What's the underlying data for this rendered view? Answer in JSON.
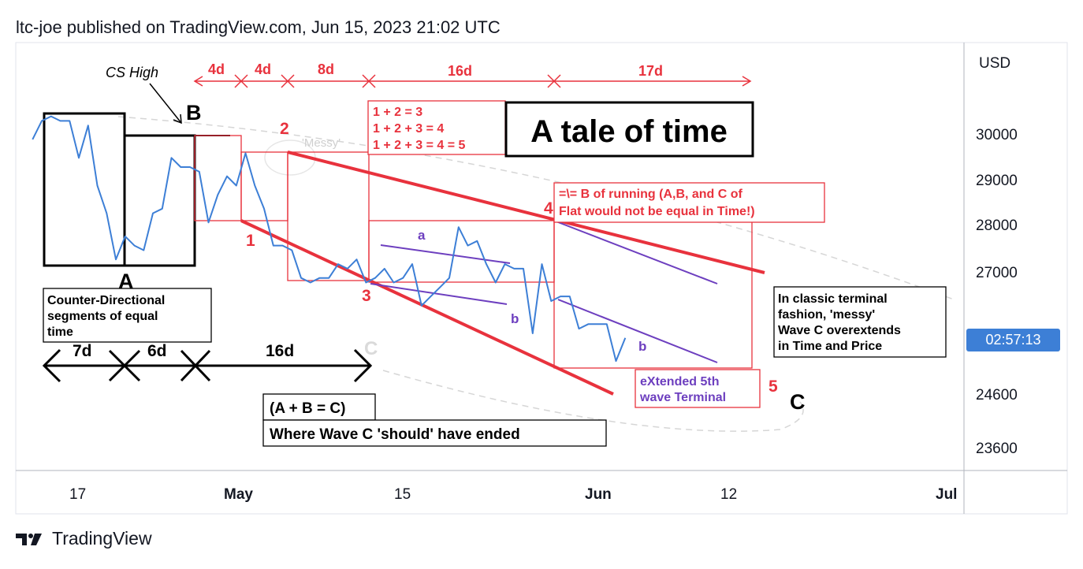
{
  "header": {
    "title": "ltc-joe published on TradingView.com, Jun 15, 2023 21:02 UTC"
  },
  "footer": {
    "brand": "TradingView"
  },
  "axis": {
    "currency": "USD",
    "price_ticks": [
      "30000",
      "29000",
      "28000",
      "27000",
      "24600",
      "23600"
    ],
    "time_ticks": [
      "17",
      "May",
      "15",
      "Jun",
      "12",
      "Jul"
    ],
    "current_time_tag": "02:57:13"
  },
  "chart_data": {
    "type": "line",
    "title": "A tale of time",
    "xlabel": "",
    "ylabel": "",
    "x_range": [
      "Apr 12, 2023",
      "Jul 1, 2023"
    ],
    "ylim": [
      23300,
      31500
    ],
    "log_scale": false,
    "grid": false,
    "series": [
      {
        "color": "#3d7fd6",
        "points": [
          [
            "Apr 12",
            29900
          ],
          [
            "Apr 13",
            30300
          ],
          [
            "Apr 14",
            30400
          ],
          [
            "Apr 15",
            30300
          ],
          [
            "Apr 16",
            30300
          ],
          [
            "Apr 17",
            29500
          ],
          [
            "Apr 18",
            30200
          ],
          [
            "Apr 19",
            28900
          ],
          [
            "Apr 20",
            28300
          ],
          [
            "Apr 21",
            27300
          ],
          [
            "Apr 22",
            27800
          ],
          [
            "Apr 23",
            27600
          ],
          [
            "Apr 24",
            27500
          ],
          [
            "Apr 25",
            28300
          ],
          [
            "Apr 26",
            28400
          ],
          [
            "Apr 27",
            29500
          ],
          [
            "Apr 28",
            29300
          ],
          [
            "Apr 29",
            29300
          ],
          [
            "Apr 30",
            29200
          ],
          [
            "May 1",
            28100
          ],
          [
            "May 2",
            28700
          ],
          [
            "May 3",
            29100
          ],
          [
            "May 4",
            28900
          ],
          [
            "May 5",
            29600
          ],
          [
            "May 6",
            28900
          ],
          [
            "May 7",
            28400
          ],
          [
            "May 8",
            27600
          ],
          [
            "May 9",
            27600
          ],
          [
            "May 10",
            27500
          ],
          [
            "May 11",
            26900
          ],
          [
            "May 12",
            26800
          ],
          [
            "May 13",
            26900
          ],
          [
            "May 14",
            26900
          ],
          [
            "May 15",
            27200
          ],
          [
            "May 16",
            27100
          ],
          [
            "May 17",
            27300
          ],
          [
            "May 18",
            26800
          ],
          [
            "May 19",
            26900
          ],
          [
            "May 20",
            27100
          ],
          [
            "May 21",
            26800
          ],
          [
            "May 22",
            26900
          ],
          [
            "May 23",
            27200
          ],
          [
            "May 24",
            26300
          ],
          [
            "May 25",
            26500
          ],
          [
            "May 26",
            26700
          ],
          [
            "May 27",
            26900
          ],
          [
            "May 28",
            28000
          ],
          [
            "May 29",
            27600
          ],
          [
            "May 30",
            27700
          ],
          [
            "May 31",
            27200
          ],
          [
            "Jun 1",
            26800
          ],
          [
            "Jun 2",
            27200
          ],
          [
            "Jun 3",
            27100
          ],
          [
            "Jun 4",
            27100
          ],
          [
            "Jun 5",
            25700
          ],
          [
            "Jun 6",
            27200
          ],
          [
            "Jun 7",
            26400
          ],
          [
            "Jun 8",
            26500
          ],
          [
            "Jun 9",
            26500
          ],
          [
            "Jun 10",
            25800
          ],
          [
            "Jun 11",
            25900
          ],
          [
            "Jun 12",
            25900
          ],
          [
            "Jun 13",
            25900
          ],
          [
            "Jun 14",
            25100
          ],
          [
            "Jun 15",
            25600
          ]
        ]
      }
    ]
  },
  "annotations": {
    "cs_high": "CS High",
    "wave_B": "B",
    "wave_A": "A",
    "wave_C": "C",
    "ghost_C": "C",
    "wave_1": "1",
    "wave_2": "2",
    "wave_3": "3",
    "wave_4": "4",
    "wave_5": "5",
    "sub_a": "a",
    "sub_b1": "b",
    "sub_b2": "b",
    "messy": "'Messy'",
    "top_durations": [
      "4d",
      "4d",
      "8d",
      "16d",
      "17d"
    ],
    "bottom_durations": [
      "7d",
      "6d",
      "16d"
    ],
    "fib_lines": [
      "1 + 2 = 3",
      "1 + 2 + 3 = 4",
      "1 + 2 + 3 = 4 = 5"
    ],
    "running_note": [
      "=\\= B of running (A,B, and C of",
      "Flat would not be equal in Time!)"
    ],
    "counter_note": [
      "Counter-Directional",
      "segments of equal",
      "time"
    ],
    "abc_note": "(A + B = C)",
    "should_note": "Where Wave C 'should' have ended",
    "extended_note": [
      "eXtended 5th",
      "wave Terminal"
    ],
    "terminal_note": [
      "In classic terminal",
      "fashion, 'messy'",
      "Wave C overextends",
      "in Time and Price"
    ],
    "colors": {
      "red": "#e8323d",
      "blue": "#3d7fd6",
      "purple": "#6d3fbf",
      "black": "#000000"
    }
  }
}
